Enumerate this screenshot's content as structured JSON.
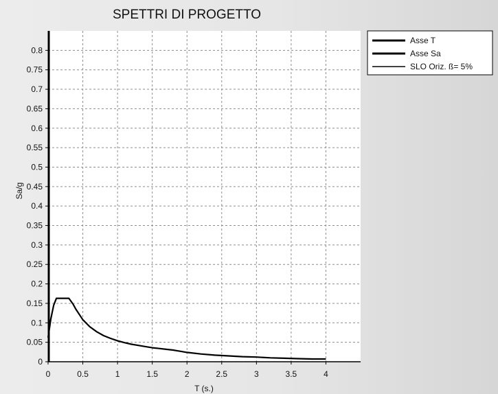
{
  "chart_data": {
    "type": "line",
    "title": "SPETTRI DI PROGETTO",
    "xlabel": "T (s.)",
    "ylabel": "Sa/g",
    "xlim": [
      0,
      4.5
    ],
    "ylim": [
      0,
      0.85
    ],
    "x_ticks": [
      "0",
      "0.5",
      "1",
      "1.5",
      "2",
      "2.5",
      "3",
      "3.5",
      "4"
    ],
    "y_ticks": [
      "0",
      "0.05",
      "0.1",
      "0.15",
      "0.2",
      "0.25",
      "0.3",
      "0.35",
      "0.4",
      "0.45",
      "0.5",
      "0.55",
      "0.6",
      "0.65",
      "0.7",
      "0.75",
      "0.8"
    ],
    "grid": true,
    "legend_position": "top-right, outside plot",
    "legend": [
      "Asse T",
      "Asse Sa",
      "SLO Oriz. ß= 5%"
    ],
    "series": [
      {
        "name": "SLO Oriz. ß= 5%",
        "x": [
          0,
          0.04,
          0.08,
          0.12,
          0.2,
          0.3,
          0.36,
          0.4,
          0.5,
          0.6,
          0.7,
          0.8,
          0.9,
          1.0,
          1.1,
          1.2,
          1.3,
          1.4,
          1.5,
          1.6,
          1.7,
          1.8,
          1.9,
          2.0,
          2.2,
          2.4,
          2.6,
          2.8,
          3.0,
          3.2,
          3.4,
          3.6,
          3.8,
          4.0
        ],
        "y": [
          0.062,
          0.11,
          0.145,
          0.163,
          0.163,
          0.163,
          0.148,
          0.135,
          0.108,
          0.09,
          0.077,
          0.067,
          0.06,
          0.054,
          0.049,
          0.045,
          0.042,
          0.039,
          0.036,
          0.034,
          0.032,
          0.03,
          0.027,
          0.024,
          0.02,
          0.017,
          0.015,
          0.013,
          0.012,
          0.01,
          0.009,
          0.008,
          0.007,
          0.007
        ]
      }
    ],
    "colors": {
      "line": "#000000",
      "grid": "#8c8c8c",
      "plot_bg": "#ffffff"
    }
  }
}
